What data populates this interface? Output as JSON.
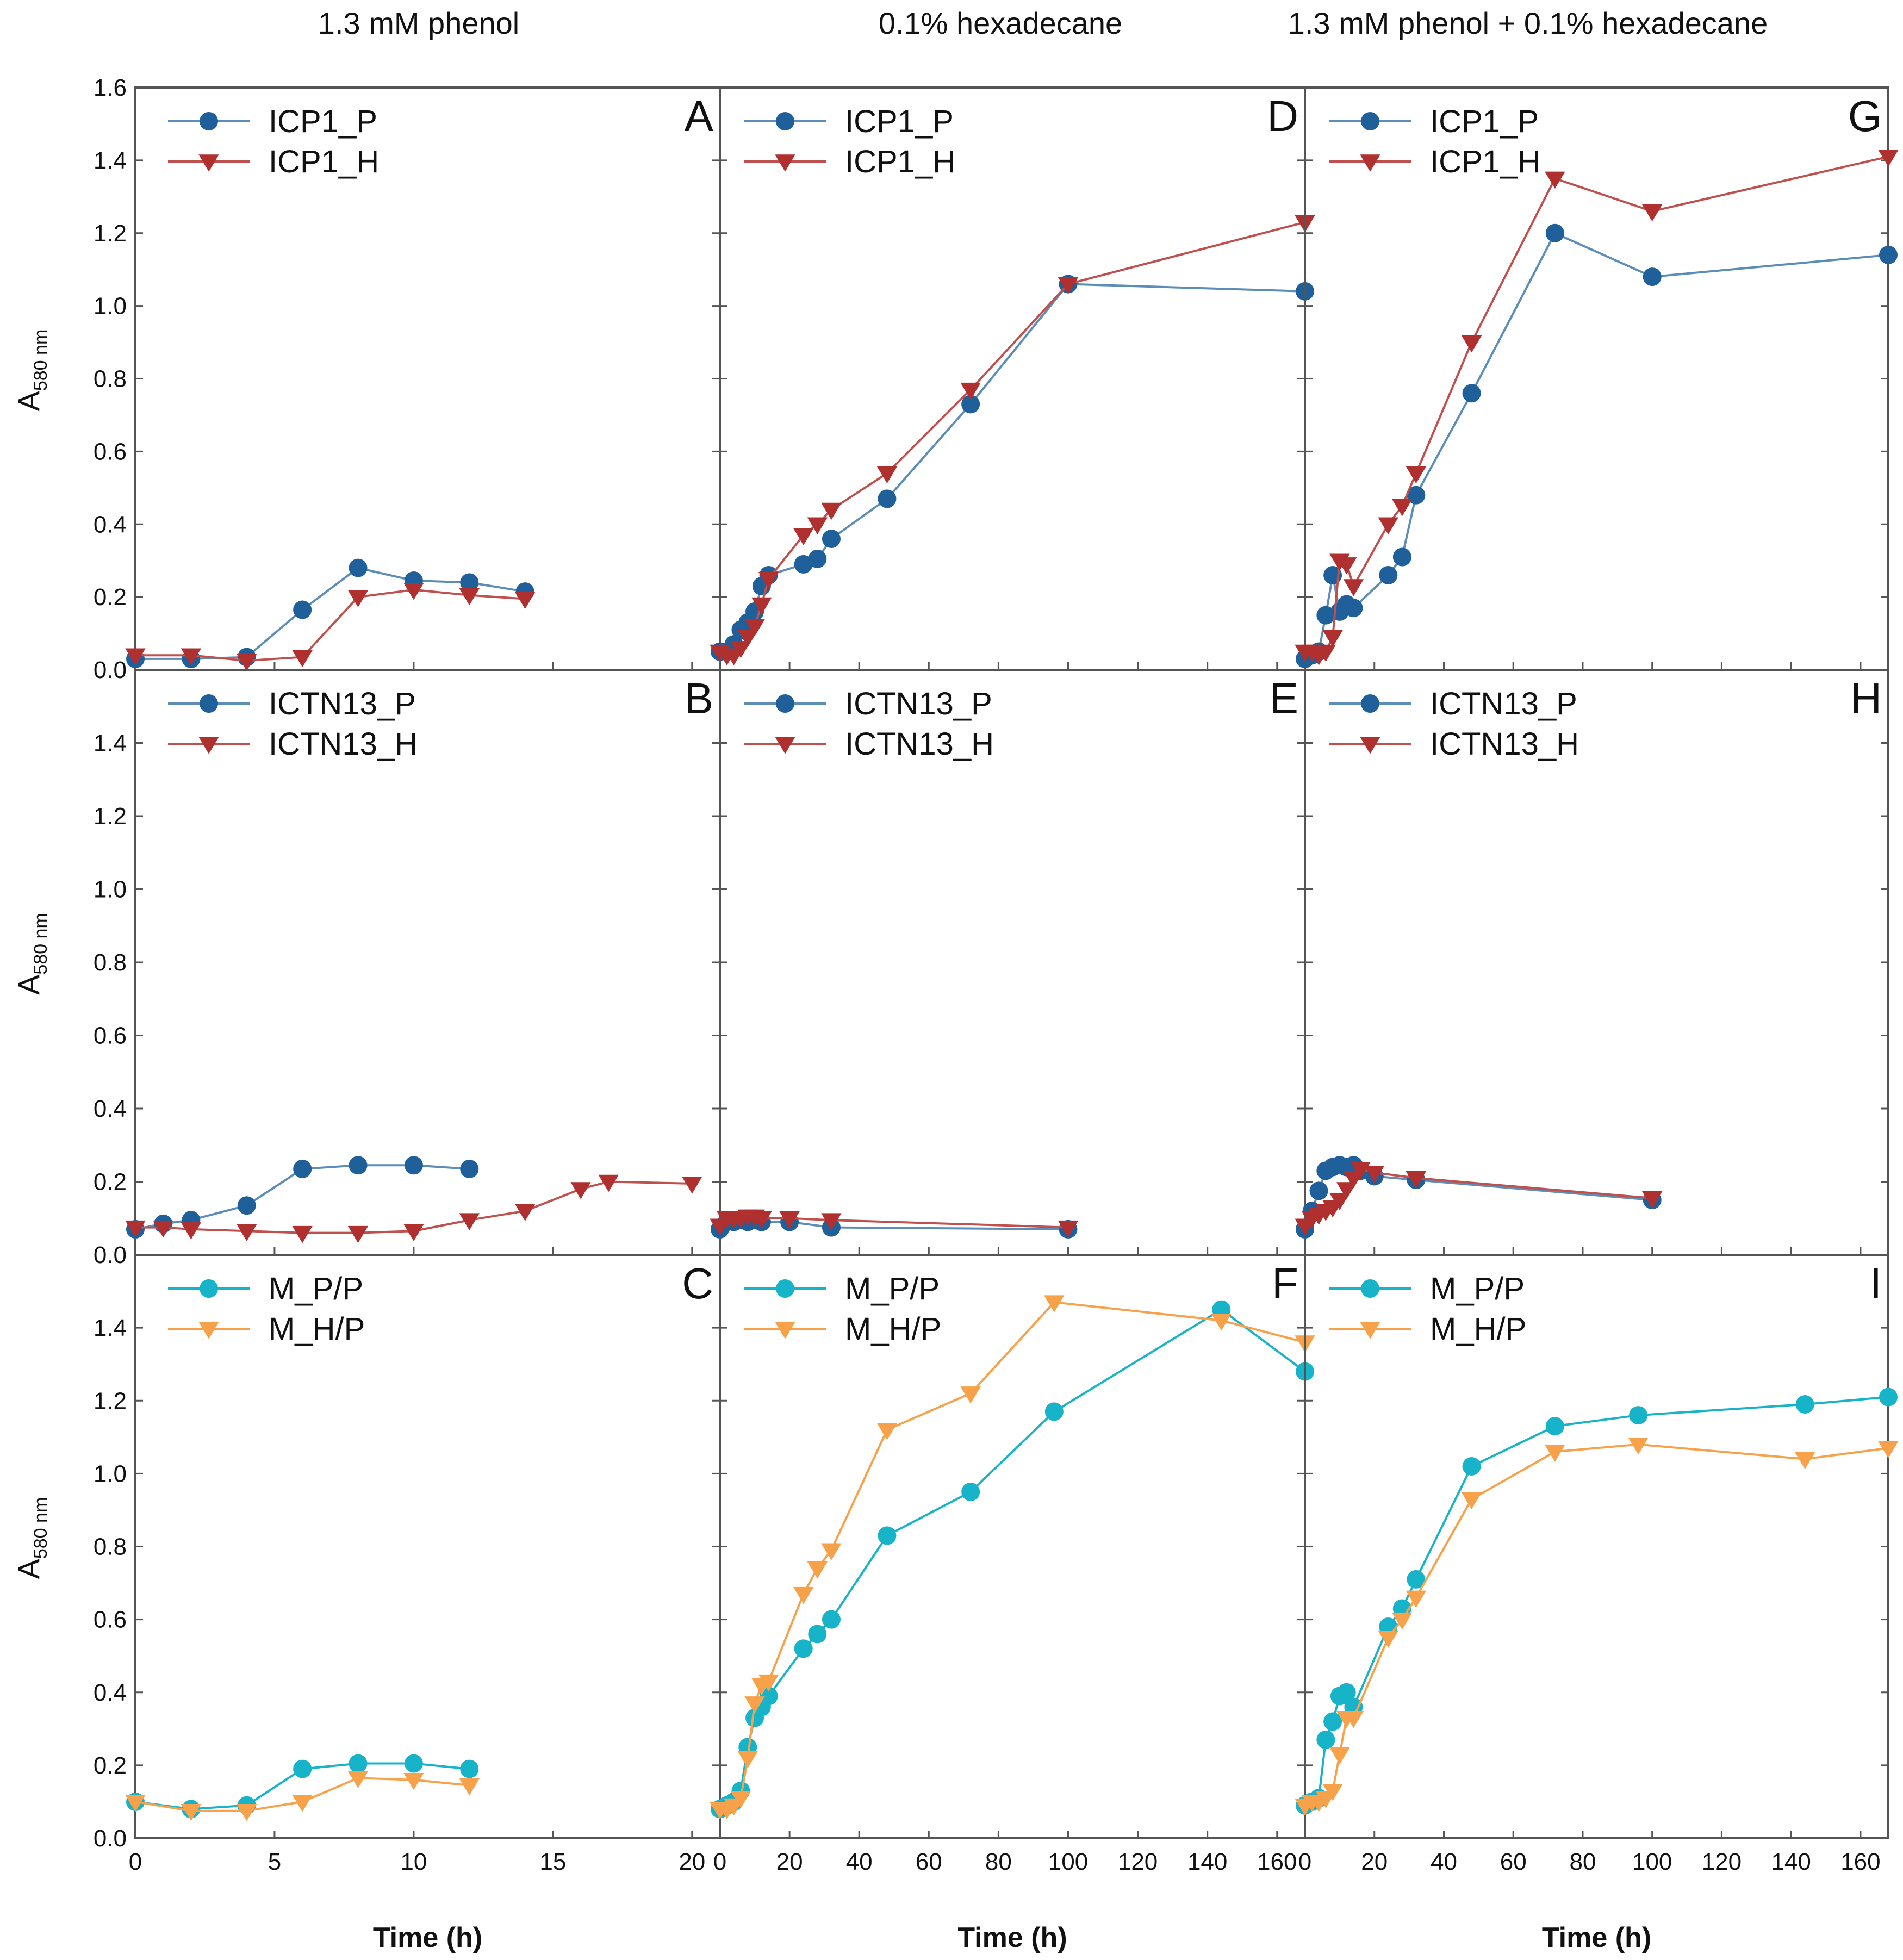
{
  "column_titles": [
    "1.3 mM phenol",
    "0.1% hexadecane",
    "1.3 mM phenol + 0.1% hexadecane"
  ],
  "ylabel_main": "A",
  "ylabel_sub": "580 nm",
  "xlabel": "Time (h)",
  "colors": {
    "blue_marker": "#1f5f9a",
    "blue_line": "#5b8db8",
    "red": "#b0302f",
    "red_line": "#c0504d",
    "cyan": "#17b4c9",
    "orange": "#f7a24a"
  },
  "chart_data": [
    {
      "panel": "A",
      "type": "line",
      "xlim": [
        0,
        21
      ],
      "ylim": [
        0,
        1.6
      ],
      "xticks": [
        0,
        5,
        10,
        15,
        20
      ],
      "yticks": [
        "0.0",
        "0.2",
        "0.4",
        "0.6",
        "0.8",
        "1.0",
        "1.2",
        "1.4",
        "1.6"
      ],
      "series": [
        {
          "name": "ICP1_P",
          "marker": "circle",
          "color": "blue",
          "x": [
            0,
            2,
            4,
            6,
            8,
            10,
            12,
            14
          ],
          "y": [
            0.03,
            0.03,
            0.035,
            0.165,
            0.28,
            0.245,
            0.24,
            0.215
          ]
        },
        {
          "name": "ICP1_H",
          "marker": "triangle",
          "color": "red",
          "x": [
            0,
            2,
            4,
            6,
            8,
            10,
            12,
            14
          ],
          "y": [
            0.04,
            0.04,
            0.025,
            0.035,
            0.2,
            0.22,
            0.205,
            0.195
          ]
        }
      ]
    },
    {
      "panel": "B",
      "type": "line",
      "xlim": [
        0,
        21
      ],
      "ylim": [
        0,
        1.6
      ],
      "xticks": [
        0,
        5,
        10,
        15,
        20
      ],
      "yticks": [
        "0.0",
        "0.2",
        "0.4",
        "0.6",
        "0.8",
        "1.0",
        "1.2",
        "1.4"
      ],
      "series": [
        {
          "name": "ICTN13_P",
          "marker": "circle",
          "color": "blue",
          "x": [
            0,
            1,
            2,
            4,
            6,
            8,
            10,
            12
          ],
          "y": [
            0.07,
            0.085,
            0.095,
            0.135,
            0.235,
            0.245,
            0.245,
            0.235
          ]
        },
        {
          "name": "ICTN13_H",
          "marker": "triangle",
          "color": "red",
          "x": [
            0,
            1,
            2,
            4,
            6,
            8,
            10,
            12,
            14,
            16,
            17,
            20
          ],
          "y": [
            0.075,
            0.075,
            0.07,
            0.065,
            0.06,
            0.06,
            0.065,
            0.095,
            0.12,
            0.18,
            0.2,
            0.195
          ]
        }
      ]
    },
    {
      "panel": "C",
      "type": "line",
      "xlim": [
        0,
        21
      ],
      "ylim": [
        0,
        1.6
      ],
      "xticks": [
        0,
        5,
        10,
        15,
        20
      ],
      "yticks": [
        "0.0",
        "0.2",
        "0.4",
        "0.6",
        "0.8",
        "1.0",
        "1.2",
        "1.4"
      ],
      "series": [
        {
          "name": "M_P/P",
          "marker": "circle",
          "color": "cyan",
          "x": [
            0,
            2,
            4,
            6,
            8,
            10,
            12
          ],
          "y": [
            0.1,
            0.08,
            0.09,
            0.19,
            0.205,
            0.205,
            0.19
          ]
        },
        {
          "name": "M_H/P",
          "marker": "triangle",
          "color": "orange",
          "x": [
            0,
            2,
            4,
            6,
            8,
            10,
            12
          ],
          "y": [
            0.1,
            0.075,
            0.075,
            0.1,
            0.165,
            0.16,
            0.145
          ]
        }
      ]
    },
    {
      "panel": "D",
      "type": "line",
      "xlim": [
        0,
        168
      ],
      "ylim": [
        0,
        1.6
      ],
      "xticks": [
        0,
        20,
        40,
        60,
        80,
        100,
        120,
        140,
        160
      ],
      "yticks": [],
      "series": [
        {
          "name": "ICP1_P",
          "marker": "circle",
          "color": "blue",
          "x": [
            0,
            2,
            4,
            6,
            8,
            10,
            12,
            14,
            24,
            28,
            32,
            48,
            72,
            100,
            168
          ],
          "y": [
            0.05,
            0.05,
            0.07,
            0.11,
            0.13,
            0.16,
            0.23,
            0.26,
            0.29,
            0.305,
            0.36,
            0.47,
            0.73,
            1.06,
            1.04
          ]
        },
        {
          "name": "ICP1_H",
          "marker": "triangle",
          "color": "red",
          "x": [
            0,
            2,
            4,
            6,
            8,
            10,
            12,
            14,
            24,
            28,
            32,
            48,
            72,
            100,
            168
          ],
          "y": [
            0.05,
            0.04,
            0.04,
            0.06,
            0.09,
            0.12,
            0.18,
            0.25,
            0.37,
            0.4,
            0.44,
            0.54,
            0.77,
            1.06,
            1.23
          ]
        }
      ]
    },
    {
      "panel": "E",
      "type": "line",
      "xlim": [
        0,
        168
      ],
      "ylim": [
        0,
        1.6
      ],
      "xticks": [
        0,
        20,
        40,
        60,
        80,
        100,
        120,
        140,
        160
      ],
      "yticks": [],
      "series": [
        {
          "name": "ICTN13_P",
          "marker": "circle",
          "color": "blue",
          "x": [
            0,
            2,
            4,
            6,
            8,
            10,
            12,
            20,
            32,
            100
          ],
          "y": [
            0.07,
            0.09,
            0.09,
            0.095,
            0.09,
            0.095,
            0.09,
            0.09,
            0.075,
            0.07
          ]
        },
        {
          "name": "ICTN13_H",
          "marker": "triangle",
          "color": "red",
          "x": [
            0,
            2,
            4,
            6,
            8,
            10,
            12,
            20,
            32,
            100
          ],
          "y": [
            0.08,
            0.1,
            0.1,
            0.1,
            0.105,
            0.105,
            0.1,
            0.1,
            0.095,
            0.075
          ]
        }
      ]
    },
    {
      "panel": "F",
      "type": "line",
      "xlim": [
        0,
        168
      ],
      "ylim": [
        0,
        1.6
      ],
      "xticks": [
        0,
        20,
        40,
        60,
        80,
        100,
        120,
        140,
        160
      ],
      "yticks": [],
      "series": [
        {
          "name": "M_P/P",
          "marker": "circle",
          "color": "cyan",
          "x": [
            0,
            2,
            4,
            6,
            8,
            10,
            12,
            14,
            24,
            28,
            32,
            48,
            72,
            96,
            144,
            168
          ],
          "y": [
            0.08,
            0.09,
            0.1,
            0.13,
            0.25,
            0.33,
            0.36,
            0.39,
            0.52,
            0.56,
            0.6,
            0.83,
            0.95,
            1.17,
            1.45,
            1.28
          ]
        },
        {
          "name": "M_H/P",
          "marker": "triangle",
          "color": "orange",
          "x": [
            0,
            2,
            4,
            6,
            8,
            10,
            12,
            14,
            24,
            28,
            32,
            48,
            72,
            96,
            144,
            168
          ],
          "y": [
            0.08,
            0.08,
            0.09,
            0.11,
            0.22,
            0.37,
            0.42,
            0.43,
            0.67,
            0.74,
            0.79,
            1.12,
            1.22,
            1.47,
            1.42,
            1.36
          ]
        }
      ]
    },
    {
      "panel": "G",
      "type": "line",
      "xlim": [
        0,
        168
      ],
      "ylim": [
        0,
        1.6
      ],
      "xticks": [
        0,
        20,
        40,
        60,
        80,
        100,
        120,
        140,
        160
      ],
      "yticks": [],
      "series": [
        {
          "name": "ICP1_P",
          "marker": "circle",
          "color": "blue",
          "x": [
            0,
            2,
            4,
            6,
            8,
            10,
            12,
            14,
            24,
            28,
            32,
            48,
            72,
            100,
            168
          ],
          "y": [
            0.03,
            0.04,
            0.05,
            0.15,
            0.26,
            0.16,
            0.18,
            0.17,
            0.26,
            0.31,
            0.48,
            0.76,
            1.2,
            1.08,
            1.14
          ]
        },
        {
          "name": "ICP1_H",
          "marker": "triangle",
          "color": "red",
          "x": [
            0,
            2,
            4,
            6,
            8,
            10,
            12,
            14,
            24,
            28,
            32,
            48,
            72,
            100,
            168
          ],
          "y": [
            0.05,
            0.05,
            0.04,
            0.05,
            0.09,
            0.3,
            0.29,
            0.23,
            0.4,
            0.45,
            0.54,
            0.9,
            1.35,
            1.26,
            1.41
          ]
        }
      ]
    },
    {
      "panel": "H",
      "type": "line",
      "xlim": [
        0,
        168
      ],
      "ylim": [
        0,
        1.6
      ],
      "xticks": [
        0,
        20,
        40,
        60,
        80,
        100,
        120,
        140,
        160
      ],
      "yticks": [],
      "series": [
        {
          "name": "ICTN13_P",
          "marker": "circle",
          "color": "blue",
          "x": [
            0,
            2,
            4,
            6,
            8,
            10,
            12,
            14,
            16,
            20,
            32,
            100
          ],
          "y": [
            0.07,
            0.12,
            0.175,
            0.23,
            0.24,
            0.245,
            0.24,
            0.245,
            0.23,
            0.215,
            0.205,
            0.15
          ]
        },
        {
          "name": "ICTN13_H",
          "marker": "triangle",
          "color": "red",
          "x": [
            0,
            2,
            4,
            6,
            8,
            10,
            12,
            14,
            16,
            20,
            32,
            100
          ],
          "y": [
            0.08,
            0.1,
            0.11,
            0.12,
            0.13,
            0.15,
            0.18,
            0.21,
            0.235,
            0.225,
            0.21,
            0.155
          ]
        }
      ]
    },
    {
      "panel": "I",
      "type": "line",
      "xlim": [
        0,
        168
      ],
      "ylim": [
        0,
        1.6
      ],
      "xticks": [
        0,
        20,
        40,
        60,
        80,
        100,
        120,
        140,
        160
      ],
      "yticks": [],
      "series": [
        {
          "name": "M_P/P",
          "marker": "circle",
          "color": "cyan",
          "x": [
            0,
            2,
            4,
            6,
            8,
            10,
            12,
            14,
            24,
            28,
            32,
            48,
            72,
            96,
            144,
            168
          ],
          "y": [
            0.09,
            0.1,
            0.11,
            0.27,
            0.32,
            0.39,
            0.4,
            0.36,
            0.58,
            0.63,
            0.71,
            1.02,
            1.13,
            1.16,
            1.19,
            1.21
          ]
        },
        {
          "name": "M_H/P",
          "marker": "triangle",
          "color": "orange",
          "x": [
            0,
            2,
            4,
            6,
            8,
            10,
            12,
            14,
            24,
            28,
            32,
            48,
            72,
            96,
            144,
            168
          ],
          "y": [
            0.09,
            0.1,
            0.1,
            0.11,
            0.13,
            0.23,
            0.33,
            0.33,
            0.55,
            0.6,
            0.66,
            0.93,
            1.06,
            1.08,
            1.04,
            1.07
          ]
        }
      ]
    }
  ]
}
